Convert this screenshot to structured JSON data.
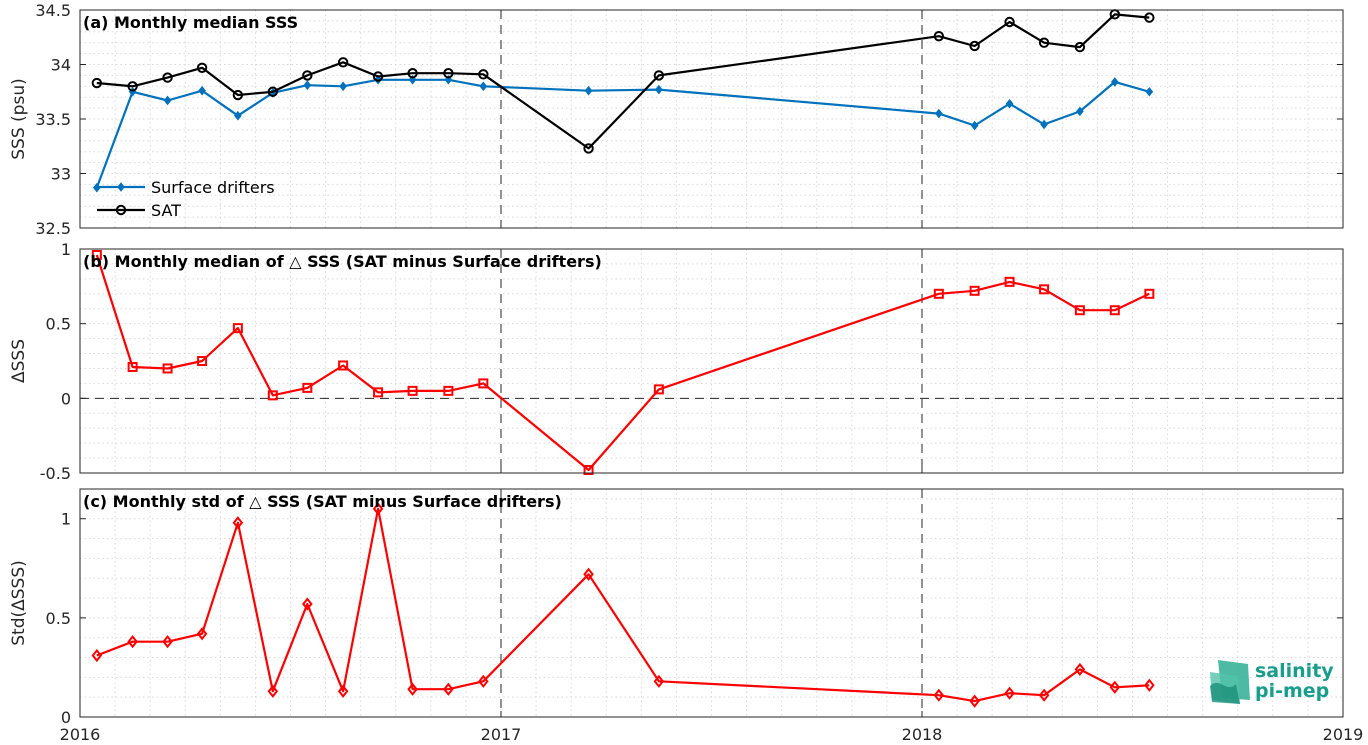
{
  "chart_data": [
    {
      "type": "line",
      "title": "(a) Monthly median SSS",
      "xlabel": "",
      "ylabel": "SSS (psu)",
      "xlim": [
        2016,
        2019
      ],
      "ylim": [
        32.5,
        34.5
      ],
      "yticks": [
        "32.5",
        "33",
        "33.5",
        "34",
        "34.5"
      ],
      "grid": "minor-dotted",
      "legend": "bottom-left",
      "series": [
        {
          "name": "Surface drifters",
          "color": "#0072bd",
          "marker": "diamond",
          "x": [
            2016.04,
            2016.125,
            2016.208,
            2016.29,
            2016.375,
            2016.458,
            2016.54,
            2016.625,
            2016.708,
            2016.79,
            2016.875,
            2016.958,
            2017.208,
            2017.375,
            2018.04,
            2018.125,
            2018.208,
            2018.29,
            2018.375,
            2018.458,
            2018.54
          ],
          "values": [
            32.87,
            33.75,
            33.67,
            33.76,
            33.53,
            33.74,
            33.81,
            33.8,
            33.86,
            33.86,
            33.86,
            33.8,
            33.76,
            33.77,
            33.55,
            33.44,
            33.64,
            33.45,
            33.57,
            33.84,
            33.75
          ]
        },
        {
          "name": "SAT",
          "color": "#000000",
          "marker": "circle",
          "x": [
            2016.04,
            2016.125,
            2016.208,
            2016.29,
            2016.375,
            2016.458,
            2016.54,
            2016.625,
            2016.708,
            2016.79,
            2016.875,
            2016.958,
            2017.208,
            2017.375,
            2018.04,
            2018.125,
            2018.208,
            2018.29,
            2018.375,
            2018.458,
            2018.54
          ],
          "values": [
            33.83,
            33.8,
            33.88,
            33.97,
            33.72,
            33.75,
            33.9,
            34.02,
            33.89,
            33.92,
            33.92,
            33.91,
            33.23,
            33.9,
            34.26,
            34.17,
            34.39,
            34.2,
            34.16,
            34.46,
            34.43
          ]
        }
      ]
    },
    {
      "type": "line",
      "title": "(b) Monthly median of △ SSS (SAT minus Surface drifters)",
      "xlabel": "",
      "ylabel": "ΔSSS",
      "xlim": [
        2016,
        2019
      ],
      "ylim": [
        -0.5,
        1
      ],
      "yticks": [
        "-0.5",
        "0",
        "0.5",
        "1"
      ],
      "grid": "minor-dotted",
      "series": [
        {
          "color": "#ff0000",
          "marker": "square",
          "x": [
            2016.04,
            2016.125,
            2016.208,
            2016.29,
            2016.375,
            2016.458,
            2016.54,
            2016.625,
            2016.708,
            2016.79,
            2016.875,
            2016.958,
            2017.208,
            2017.375,
            2018.04,
            2018.125,
            2018.208,
            2018.29,
            2018.375,
            2018.458,
            2018.54
          ],
          "values": [
            0.96,
            0.21,
            0.2,
            0.25,
            0.47,
            0.02,
            0.07,
            0.22,
            0.04,
            0.05,
            0.05,
            0.1,
            -0.48,
            0.06,
            0.7,
            0.72,
            0.78,
            0.73,
            0.59,
            0.59,
            0.7
          ]
        }
      ]
    },
    {
      "type": "line",
      "title": "(c) Monthly std of △ SSS (SAT minus Surface drifters)",
      "xlabel": "",
      "ylabel": "Std(ΔSSS)",
      "xlim": [
        2016,
        2019
      ],
      "ylim": [
        0,
        1.15
      ],
      "yticks": [
        "0",
        "0.5",
        "1"
      ],
      "xticks": [
        "2016",
        "2017",
        "2018",
        "2019"
      ],
      "grid": "minor-dotted",
      "series": [
        {
          "color": "#ff0000",
          "marker": "diamond",
          "x": [
            2016.04,
            2016.125,
            2016.208,
            2016.29,
            2016.375,
            2016.458,
            2016.54,
            2016.625,
            2016.708,
            2016.79,
            2016.875,
            2016.958,
            2017.208,
            2017.375,
            2018.04,
            2018.125,
            2018.208,
            2018.29,
            2018.375,
            2018.458,
            2018.54
          ],
          "values": [
            0.31,
            0.38,
            0.38,
            0.42,
            0.98,
            0.13,
            0.57,
            0.13,
            1.05,
            0.14,
            0.14,
            0.18,
            0.72,
            0.18,
            0.11,
            0.08,
            0.12,
            0.11,
            0.24,
            0.15,
            0.16
          ]
        }
      ]
    }
  ],
  "logo": {
    "line1": "salinity",
    "line2": "pi-mep",
    "color": "#1a9e8c"
  }
}
